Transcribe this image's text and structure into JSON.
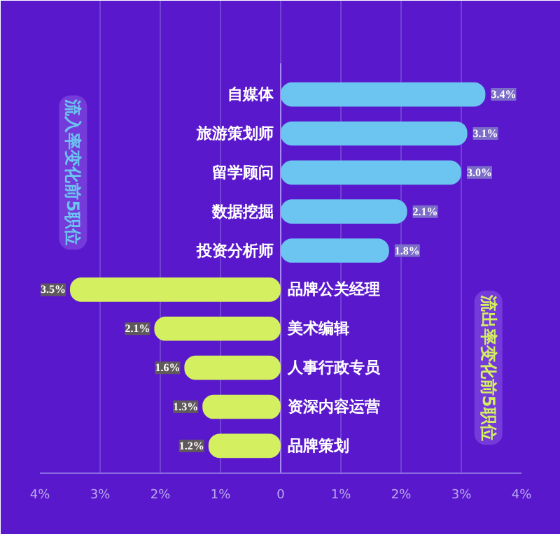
{
  "chart_data": {
    "type": "bar",
    "orientation": "horizontal",
    "categories": [
      "自媒体",
      "旅游策划师",
      "留学顾问",
      "数据挖掘",
      "投资分析师",
      "品牌公关经理",
      "美术编辑",
      "人事行政专员",
      "资深内容运营",
      "品牌策划"
    ],
    "series": [
      {
        "name": "流入率变化前5职位",
        "color": "#6cc4f0",
        "values": [
          3.4,
          3.1,
          3.0,
          2.1,
          1.8,
          null,
          null,
          null,
          null,
          null
        ],
        "value_labels": [
          "3.4%",
          "3.1%",
          "3.0%",
          "2.1%",
          "1.8%",
          null,
          null,
          null,
          null,
          null
        ]
      },
      {
        "name": "流出率变化前5职位",
        "color": "#d4f060",
        "values": [
          null,
          null,
          null,
          null,
          null,
          3.5,
          2.1,
          1.6,
          1.3,
          1.2
        ],
        "base": [
          null,
          null,
          null,
          null,
          null,
          -3.5,
          -2.1,
          -1.6,
          -1.3,
          -1.2
        ],
        "value_labels": [
          null,
          null,
          null,
          null,
          null,
          "3.5%",
          "2.1%",
          "1.6%",
          "1.3%",
          "1.2%"
        ]
      }
    ],
    "xlim": [
      -4,
      4
    ],
    "xticks": [
      {
        "value": -4,
        "label": "4%"
      },
      {
        "value": -3,
        "label": "3%"
      },
      {
        "value": -2,
        "label": "2%"
      },
      {
        "value": -1,
        "label": "1%"
      },
      0,
      {
        "value": 1,
        "label": "1%"
      },
      {
        "value": 2,
        "label": "2%"
      },
      {
        "value": 3,
        "label": "3%"
      },
      {
        "value": 4,
        "label": "4%"
      }
    ],
    "grid": "x"
  }
}
